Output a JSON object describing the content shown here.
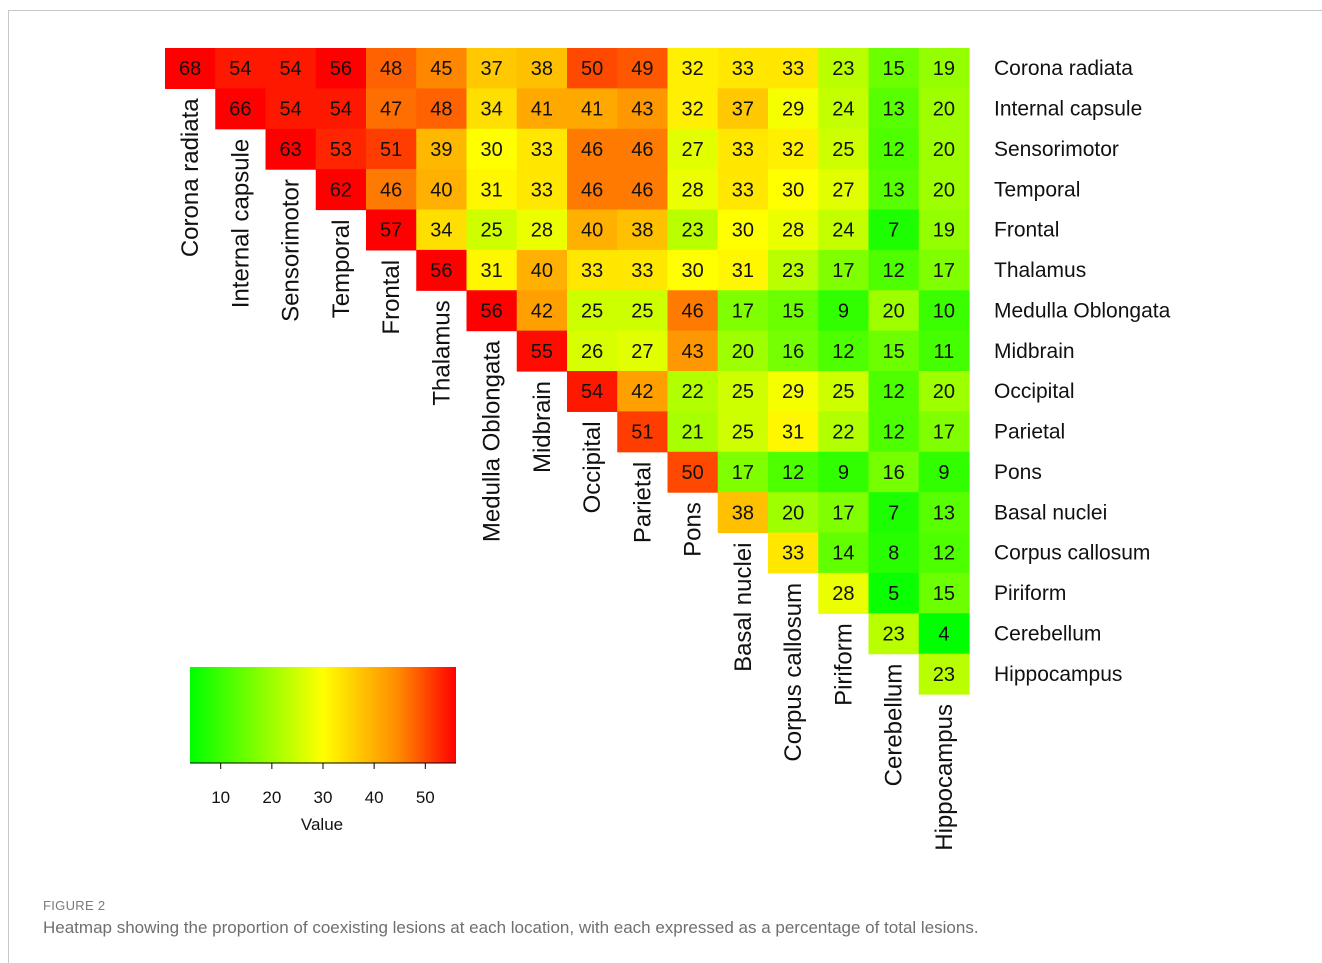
{
  "figure": {
    "label": "FIGURE 2",
    "caption": "Heatmap showing the proportion of coexisting lesions at each location, with each expressed as a percentage of total lesions."
  },
  "chart_data": {
    "type": "heatmap",
    "title": "",
    "labels": [
      "Corona radiata",
      "Internal capsule",
      "Sensorimotor",
      "Temporal",
      "Frontal",
      "Thalamus",
      "Medulla Oblongata",
      "Midbrain",
      "Occipital",
      "Parietal",
      "Pons",
      "Basal nuclei",
      "Corpus callosum",
      "Piriform",
      "Cerebellum",
      "Hippocampus"
    ],
    "matrix": [
      [
        68,
        54,
        54,
        56,
        48,
        45,
        37,
        38,
        50,
        49,
        32,
        33,
        33,
        23,
        15,
        19
      ],
      [
        66,
        54,
        54,
        47,
        48,
        34,
        41,
        41,
        43,
        32,
        37,
        29,
        24,
        13,
        20
      ],
      [
        63,
        53,
        51,
        39,
        30,
        33,
        46,
        46,
        27,
        33,
        32,
        25,
        12,
        20
      ],
      [
        62,
        46,
        40,
        31,
        33,
        46,
        46,
        28,
        33,
        30,
        27,
        13,
        20
      ],
      [
        57,
        34,
        25,
        28,
        40,
        38,
        23,
        30,
        28,
        24,
        7,
        19
      ],
      [
        56,
        31,
        40,
        33,
        33,
        30,
        31,
        23,
        17,
        12,
        17
      ],
      [
        56,
        42,
        25,
        25,
        46,
        17,
        15,
        9,
        20,
        10
      ],
      [
        55,
        26,
        27,
        43,
        20,
        16,
        12,
        15,
        11
      ],
      [
        54,
        42,
        22,
        25,
        29,
        25,
        12,
        20
      ],
      [
        51,
        21,
        25,
        31,
        22,
        12,
        17
      ],
      [
        50,
        17,
        12,
        9,
        16,
        9
      ],
      [
        38,
        20,
        17,
        7,
        13
      ],
      [
        33,
        14,
        8,
        12
      ],
      [
        28,
        5,
        15
      ],
      [
        23,
        4
      ],
      [
        23
      ]
    ],
    "matrix_layout": "upper-triangular; row i lists values for columns i..15",
    "colorbar": {
      "title": "Value",
      "ticks": [
        10,
        20,
        30,
        40,
        50
      ],
      "range": [
        4,
        56
      ],
      "colors": [
        "#00ff00",
        "#ffff00",
        "#ff8c00",
        "#ff0000"
      ],
      "placement": "bottom-left"
    },
    "row_label_position": "right",
    "column_label_position": "diagonal, rotated vertical"
  }
}
